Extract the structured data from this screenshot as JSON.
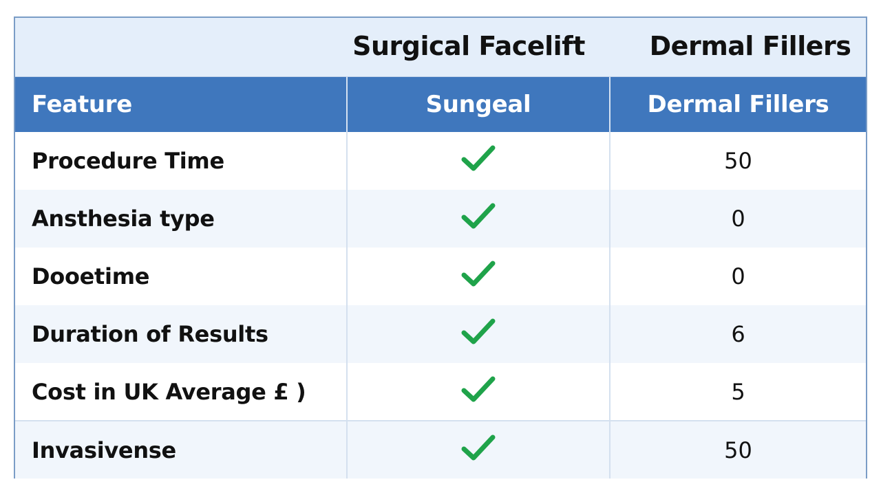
{
  "top_header": {
    "col2_title": "Surgical Facelift",
    "col3_title": "Dermal Fillers"
  },
  "table": {
    "headers": [
      "Feature",
      "Sungeal",
      "Dermal Fillers"
    ],
    "rows": [
      {
        "feature": "Procedure Time",
        "surgical": "check-icon",
        "fillers": "50"
      },
      {
        "feature": "Ansthesia type",
        "surgical": "check-icon",
        "fillers": "0"
      },
      {
        "feature": "Dooetime",
        "surgical": "check-icon",
        "fillers": "0"
      },
      {
        "feature": "Duration of Results",
        "surgical": "check-icon",
        "fillers": "6"
      },
      {
        "feature": "Cost in UK Average £ )",
        "surgical": "check-icon",
        "fillers": "5"
      },
      {
        "feature": "Invasivense",
        "surgical": "check-icon",
        "fillers": "50"
      }
    ]
  },
  "colors": {
    "header_blue": "#3f77bd",
    "top_header_bg": "#e4eefa",
    "check_green": "#1fa34a",
    "border": "#7a9cc6"
  }
}
